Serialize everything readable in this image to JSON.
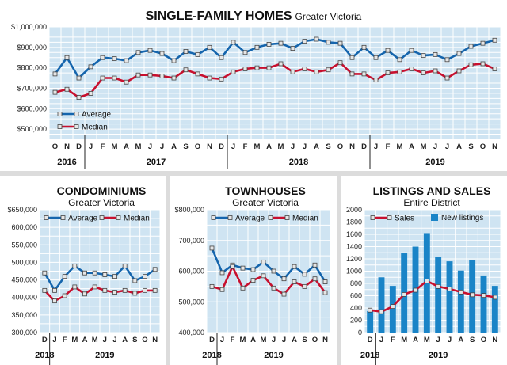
{
  "colors": {
    "plot_bg": "#cfe4f2",
    "grid": "#ffffff",
    "average": "#1565ad",
    "median": "#c8102e",
    "bar": "#1a84c7",
    "marker_fill": "#e6e6e6"
  },
  "chart_data": [
    {
      "id": "sfh",
      "type": "line",
      "title": "SINGLE-FAMILY HOMES",
      "subtitle": "Greater Victoria",
      "ylim": [
        450000,
        1000000
      ],
      "yticks": [
        500000,
        600000,
        700000,
        800000,
        900000,
        1000000
      ],
      "ytick_labels": [
        "$500,000",
        "$600,000",
        "$700,000",
        "$800,000",
        "$900,000",
        "$1,000,000"
      ],
      "categories": [
        "O",
        "N",
        "D",
        "J",
        "F",
        "M",
        "A",
        "M",
        "J",
        "J",
        "A",
        "S",
        "O",
        "N",
        "D",
        "J",
        "F",
        "M",
        "A",
        "M",
        "J",
        "J",
        "A",
        "S",
        "O",
        "N",
        "D",
        "J",
        "F",
        "M",
        "A",
        "M",
        "J",
        "J",
        "A",
        "S",
        "O",
        "N"
      ],
      "years": [
        {
          "label": "2016",
          "from": 0,
          "to": 2
        },
        {
          "label": "2017",
          "from": 3,
          "to": 14
        },
        {
          "label": "2018",
          "from": 15,
          "to": 26
        },
        {
          "label": "2019",
          "from": 27,
          "to": 37
        }
      ],
      "series": [
        {
          "name": "Average",
          "values": [
            770000,
            850000,
            750000,
            805000,
            850000,
            845000,
            835000,
            875000,
            885000,
            870000,
            835000,
            880000,
            865000,
            900000,
            850000,
            925000,
            875000,
            900000,
            915000,
            920000,
            895000,
            930000,
            940000,
            925000,
            920000,
            850000,
            900000,
            850000,
            885000,
            840000,
            885000,
            860000,
            865000,
            840000,
            870000,
            905000,
            920000,
            935000
          ]
        },
        {
          "name": "Median",
          "values": [
            680000,
            695000,
            655000,
            675000,
            750000,
            750000,
            730000,
            765000,
            765000,
            760000,
            750000,
            790000,
            770000,
            750000,
            745000,
            780000,
            795000,
            800000,
            800000,
            820000,
            780000,
            795000,
            780000,
            790000,
            825000,
            770000,
            770000,
            740000,
            775000,
            780000,
            795000,
            775000,
            785000,
            750000,
            785000,
            815000,
            820000,
            795000
          ]
        }
      ]
    },
    {
      "id": "condo",
      "type": "line",
      "title": "CONDOMINIUMS",
      "subtitle": "Greater Victoria",
      "ylim": [
        300000,
        650000
      ],
      "yticks": [
        300000,
        350000,
        400000,
        450000,
        500000,
        550000,
        600000,
        650000
      ],
      "ytick_labels": [
        "300,000",
        "350,000",
        "400,000",
        "450,000",
        "500,000",
        "550,000",
        "600,000",
        "$650,000"
      ],
      "categories": [
        "D",
        "J",
        "F",
        "M",
        "A",
        "M",
        "J",
        "J",
        "A",
        "S",
        "O",
        "N"
      ],
      "years": [
        {
          "label": "2018",
          "from": 0,
          "to": 0
        },
        {
          "label": "2019",
          "from": 1,
          "to": 11
        }
      ],
      "series": [
        {
          "name": "Average",
          "values": [
            470000,
            420000,
            460000,
            490000,
            470000,
            470000,
            465000,
            460000,
            490000,
            448000,
            460000,
            480000
          ]
        },
        {
          "name": "Median",
          "values": [
            420000,
            390000,
            405000,
            430000,
            410000,
            430000,
            420000,
            415000,
            420000,
            412000,
            420000,
            420000
          ]
        }
      ]
    },
    {
      "id": "town",
      "type": "line",
      "title": "TOWNHOUSES",
      "subtitle": "Greater Victoria",
      "ylim": [
        400000,
        800000
      ],
      "yticks": [
        400000,
        500000,
        600000,
        700000,
        800000
      ],
      "ytick_labels": [
        "400,000",
        "500,000",
        "600,000",
        "700,000",
        "$800,000"
      ],
      "categories": [
        "D",
        "J",
        "F",
        "M",
        "A",
        "M",
        "J",
        "J",
        "A",
        "S",
        "O",
        "N"
      ],
      "years": [
        {
          "label": "2018",
          "from": 0,
          "to": 0
        },
        {
          "label": "2019",
          "from": 1,
          "to": 11
        }
      ],
      "series": [
        {
          "name": "Average",
          "values": [
            675000,
            595000,
            620000,
            610000,
            605000,
            630000,
            600000,
            575000,
            615000,
            590000,
            620000,
            565000
          ]
        },
        {
          "name": "Median",
          "values": [
            550000,
            540000,
            615000,
            545000,
            570000,
            585000,
            545000,
            525000,
            565000,
            550000,
            575000,
            530000
          ]
        }
      ]
    },
    {
      "id": "listings",
      "type": "bar",
      "title": "LISTINGS AND SALES",
      "subtitle": "Entire District",
      "ylim": [
        0,
        2000
      ],
      "yticks": [
        0,
        200,
        400,
        600,
        800,
        1000,
        1200,
        1400,
        1600,
        1800,
        2000
      ],
      "ytick_labels": [
        "0",
        "200",
        "400",
        "600",
        "800",
        "1000",
        "1200",
        "1400",
        "1600",
        "1800",
        "2000"
      ],
      "categories": [
        "D",
        "J",
        "F",
        "M",
        "A",
        "M",
        "J",
        "J",
        "A",
        "S",
        "O",
        "N"
      ],
      "years": [
        {
          "label": "2018",
          "from": 0,
          "to": 0
        },
        {
          "label": "2019",
          "from": 1,
          "to": 11
        }
      ],
      "series": [
        {
          "name": "New listings",
          "type": "bar",
          "values": [
            350,
            900,
            760,
            1290,
            1400,
            1620,
            1230,
            1160,
            1010,
            1180,
            930,
            760
          ]
        },
        {
          "name": "Sales",
          "type": "line",
          "values": [
            365,
            340,
            425,
            620,
            690,
            840,
            750,
            710,
            660,
            615,
            605,
            575
          ]
        }
      ]
    }
  ]
}
